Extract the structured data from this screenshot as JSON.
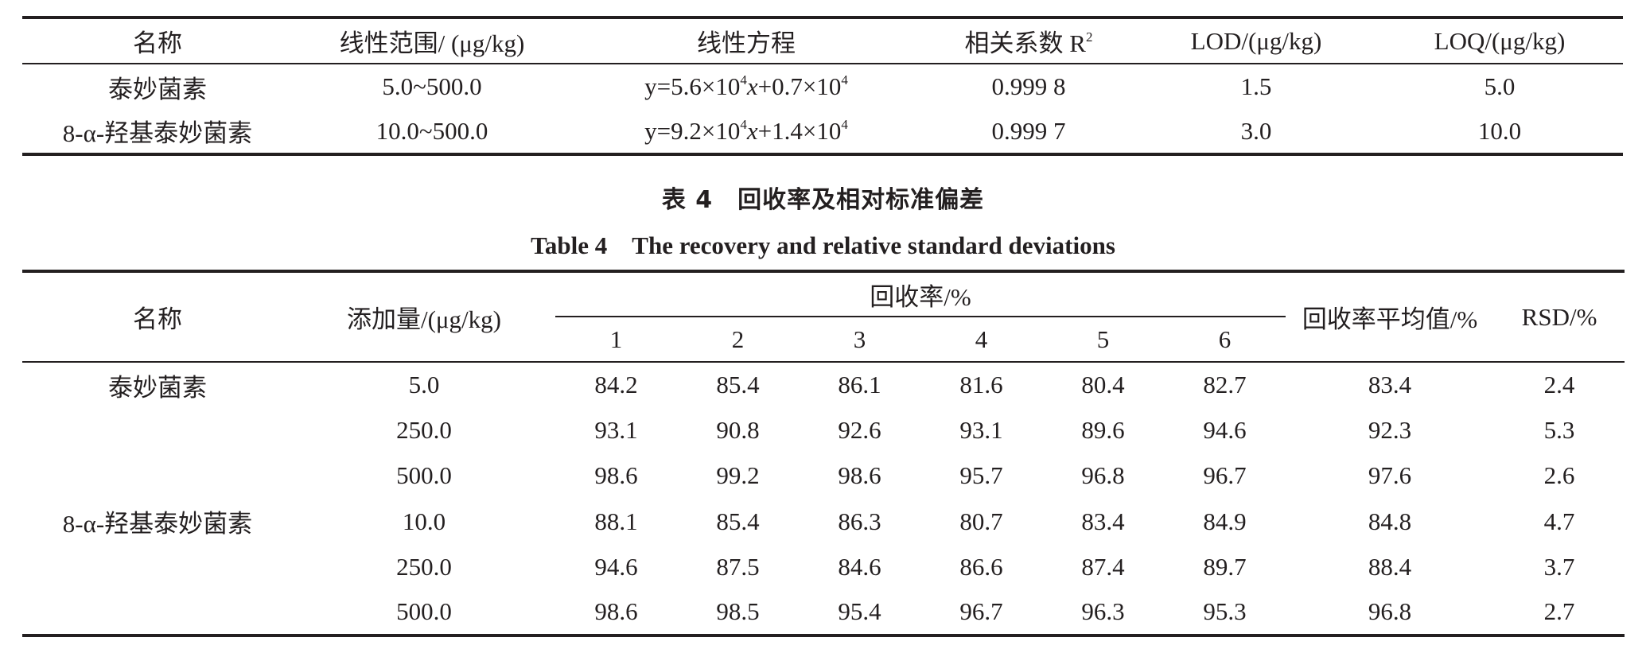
{
  "table3": {
    "headers": {
      "name": "名称",
      "range": "线性范围/ (μg/kg)",
      "equation": "线性方程",
      "r2_prefix": "相关系数 R",
      "r2_sup": "2",
      "lod": "LOD/(μg/kg)",
      "loq": "LOQ/(μg/kg)"
    },
    "rows": [
      {
        "name": "泰妙菌素",
        "range": "5.0~500.0",
        "eq": {
          "a": "y=5.6×10",
          "a_exp": "4",
          "x": "x",
          "b": "+0.7×10",
          "b_exp": "4"
        },
        "r2": "0.999 8",
        "lod": "1.5",
        "loq": "5.0"
      },
      {
        "name": "8-α-羟基泰妙菌素",
        "range": "10.0~500.0",
        "eq": {
          "a": "y=9.2×10",
          "a_exp": "4",
          "x": "x",
          "b": "+1.4×10",
          "b_exp": "4"
        },
        "r2": "0.999 7",
        "lod": "3.0",
        "loq": "10.0"
      }
    ]
  },
  "table4": {
    "caption_cn": "表 4　回收率及相对标准偏差",
    "caption_en": "Table 4　The recovery and relative standard deviations",
    "headers": {
      "name": "名称",
      "added": "添加量/(μg/kg)",
      "recovery": "回收率/%",
      "replicates": [
        "1",
        "2",
        "3",
        "4",
        "5",
        "6"
      ],
      "mean": "回收率平均值/%",
      "rsd": "RSD/%"
    },
    "rows": [
      {
        "name": "泰妙菌素",
        "added": "5.0",
        "r": [
          "84.2",
          "85.4",
          "86.1",
          "81.6",
          "80.4",
          "82.7"
        ],
        "mean": "83.4",
        "rsd": "2.4"
      },
      {
        "name": "",
        "added": "250.0",
        "r": [
          "93.1",
          "90.8",
          "92.6",
          "93.1",
          "89.6",
          "94.6"
        ],
        "mean": "92.3",
        "rsd": "5.3"
      },
      {
        "name": "",
        "added": "500.0",
        "r": [
          "98.6",
          "99.2",
          "98.6",
          "95.7",
          "96.8",
          "96.7"
        ],
        "mean": "97.6",
        "rsd": "2.6"
      },
      {
        "name": "8-α-羟基泰妙菌素",
        "added": "10.0",
        "r": [
          "88.1",
          "85.4",
          "86.3",
          "80.7",
          "83.4",
          "84.9"
        ],
        "mean": "84.8",
        "rsd": "4.7"
      },
      {
        "name": "",
        "added": "250.0",
        "r": [
          "94.6",
          "87.5",
          "84.6",
          "86.6",
          "87.4",
          "89.7"
        ],
        "mean": "88.4",
        "rsd": "3.7"
      },
      {
        "name": "",
        "added": "500.0",
        "r": [
          "98.6",
          "98.5",
          "95.4",
          "96.7",
          "96.3",
          "95.3"
        ],
        "mean": "96.8",
        "rsd": "2.7"
      }
    ]
  }
}
